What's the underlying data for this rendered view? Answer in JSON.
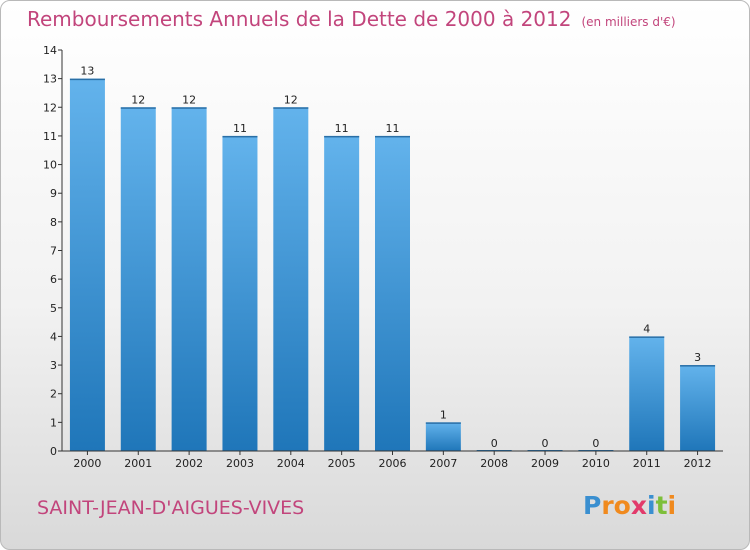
{
  "header": {
    "title": "Remboursements Annuels de la Dette de 2000 à 2012",
    "subtitle": "(en milliers d'€)"
  },
  "footer": {
    "commune": "SAINT-JEAN-D'AIGUES-VIVES",
    "logo_text": "Proxiti",
    "logo_letters": [
      "P",
      "r",
      "o",
      "x",
      "i",
      "t",
      "i"
    ],
    "logo_colors": [
      "#3a8fd0",
      "#f08a1e",
      "#f08a1e",
      "#e23a6b",
      "#3a8fd0",
      "#7dbf3a",
      "#f08a1e"
    ]
  },
  "colors": {
    "bar_light": "#63b3ec",
    "bar_dark": "#1f76b9",
    "title": "#c2457c",
    "axis": "#333333"
  },
  "chart_data": {
    "type": "bar",
    "title": "Remboursements Annuels de la Dette de 2000 à 2012",
    "subtitle": "(en milliers d'€)",
    "xlabel": "",
    "ylabel": "",
    "categories": [
      "2000",
      "2001",
      "2002",
      "2003",
      "2004",
      "2005",
      "2006",
      "2007",
      "2008",
      "2009",
      "2010",
      "2011",
      "2012"
    ],
    "values": [
      13,
      12,
      12,
      11,
      12,
      11,
      11,
      1,
      0,
      0,
      0,
      4,
      3
    ],
    "data_labels": [
      "13",
      "12",
      "12",
      "11",
      "12",
      "11",
      "11",
      "1",
      "0",
      "0",
      "0",
      "4",
      "3"
    ],
    "yticks": [
      "0",
      "1",
      "2",
      "3",
      "4",
      "5",
      "6",
      "7",
      "8",
      "9",
      "10",
      "11",
      "12",
      "13",
      "14"
    ],
    "ylim": [
      0,
      14
    ],
    "grid": false,
    "legend": "none"
  }
}
